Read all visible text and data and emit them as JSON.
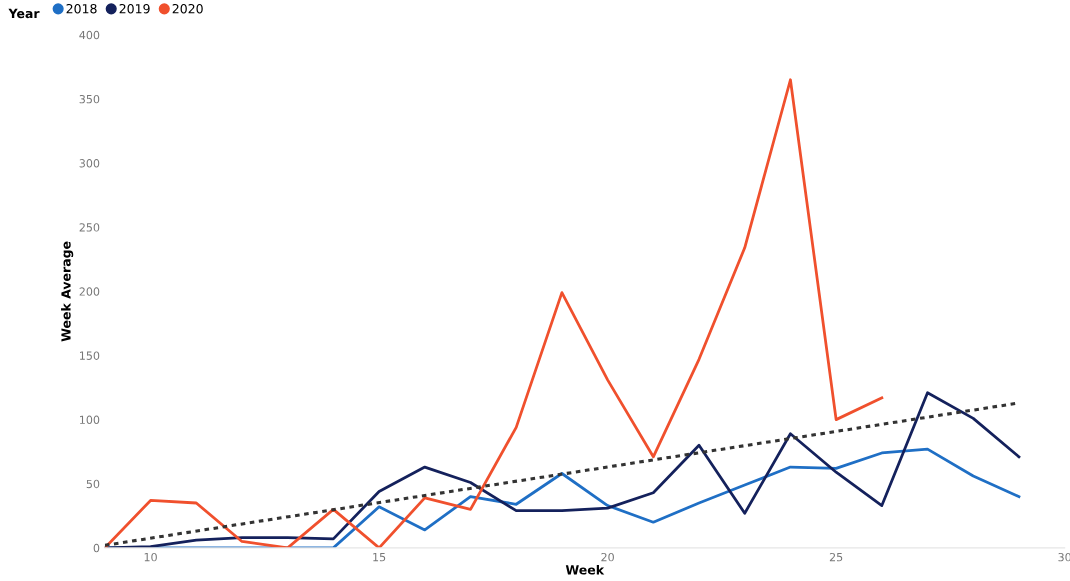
{
  "chart_data": {
    "type": "line",
    "xlabel": "Week",
    "ylabel": "Week Average",
    "legend_title": "Year",
    "legend": "top left",
    "grid": false,
    "marker": "none",
    "line_style": "solid",
    "xlim": [
      9,
      30
    ],
    "xticks": [
      10,
      15,
      20,
      25,
      30
    ],
    "ylim": [
      0,
      400
    ],
    "yticks": [
      0,
      50,
      100,
      150,
      200,
      250,
      300,
      350,
      400
    ],
    "x": [
      9,
      10,
      11,
      12,
      13,
      14,
      15,
      16,
      17,
      18,
      19,
      20,
      21,
      22,
      23,
      24,
      25,
      26,
      27,
      28,
      29
    ],
    "series": [
      {
        "name": "2018",
        "color": "#1f6fc5",
        "values": [
          0,
          0,
          0,
          0,
          0,
          0,
          32,
          14,
          40,
          34,
          58,
          33,
          20,
          35,
          49,
          63,
          62,
          74,
          77,
          56,
          40
        ]
      },
      {
        "name": "2019",
        "color": "#14215c",
        "values": [
          0,
          1,
          6,
          8,
          8,
          7,
          44,
          63,
          51,
          29,
          29,
          31,
          43,
          80,
          27,
          89,
          59,
          33,
          121,
          101,
          71
        ]
      },
      {
        "name": "2020",
        "color": "#f0502d",
        "values": [
          0,
          37,
          35,
          5,
          0,
          30,
          0,
          39,
          30,
          94,
          199,
          131,
          71,
          147,
          234,
          365,
          100,
          117,
          null,
          null,
          null
        ]
      },
      {
        "type": "line",
        "color": "#333333",
        "line_style": "dotted",
        "x": [
          9,
          29
        ],
        "values": [
          2,
          113
        ]
      }
    ]
  }
}
